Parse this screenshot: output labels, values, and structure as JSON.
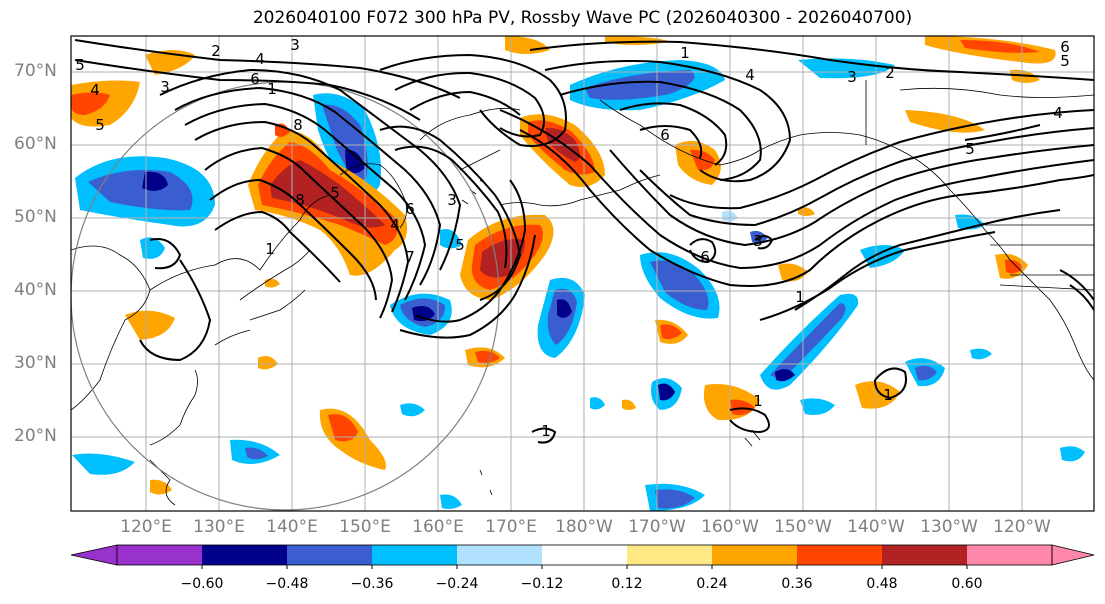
{
  "title": "2026040100 F072 300 hPa PV, Rossby Wave PC (2026040300 - 2026040700)",
  "map": {
    "lat_labels": [
      "70°N",
      "60°N",
      "50°N",
      "40°N",
      "30°N",
      "20°N"
    ],
    "lon_labels": [
      "120°E",
      "130°E",
      "140°E",
      "150°E",
      "160°E",
      "170°E",
      "180°W",
      "170°W",
      "160°W",
      "150°W",
      "140°W",
      "130°W",
      "120°W"
    ],
    "pv_contour_labels": [
      "1",
      "2",
      "3",
      "4",
      "5",
      "6",
      "7",
      "8"
    ],
    "pv_label_instances": [
      "6",
      "1",
      "2",
      "4",
      "3",
      "5",
      "4",
      "5",
      "3",
      "8",
      "5",
      "6",
      "7",
      "8",
      "1",
      "4",
      "3",
      "6",
      "1",
      "6",
      "3",
      "5",
      "1",
      "2",
      "3",
      "4",
      "5",
      "6",
      "1",
      "1",
      "1",
      "5",
      "4"
    ]
  },
  "colorbar": {
    "ticks": [
      "−0.60",
      "−0.48",
      "−0.36",
      "−0.24",
      "−0.12",
      "0.12",
      "0.24",
      "0.36",
      "0.48",
      "0.60"
    ],
    "colors": [
      "#9932cc",
      "#00008b",
      "#3a5ecf",
      "#00bfff",
      "#b0e2ff",
      "#ffffff",
      "#ffe985",
      "#ffa500",
      "#ff4500",
      "#b22222",
      "#ff88aa"
    ]
  }
}
